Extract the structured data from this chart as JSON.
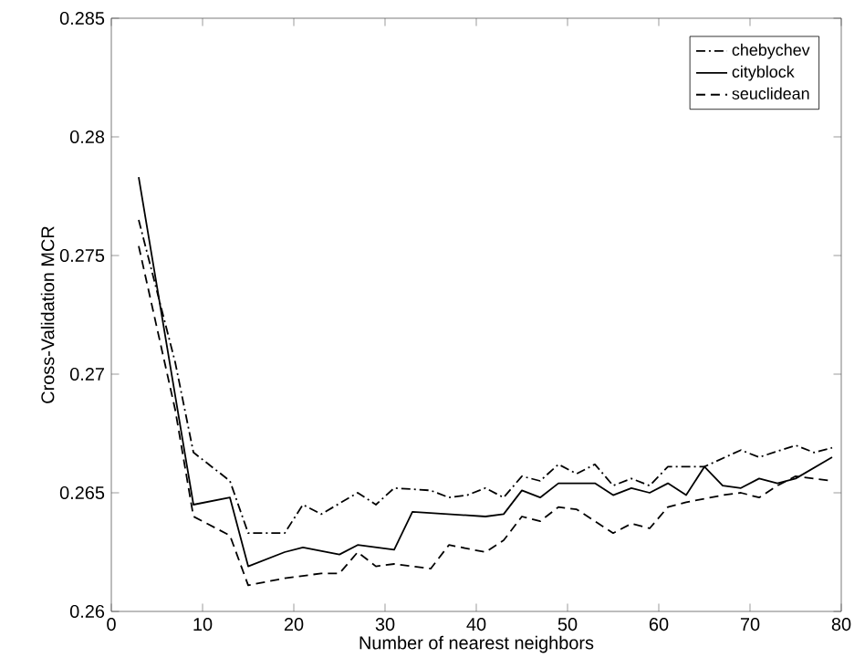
{
  "chart_data": {
    "type": "line",
    "xlabel": "Number of nearest neighbors",
    "ylabel": "Cross-Validation MCR",
    "xlim": [
      0,
      80
    ],
    "xticks": [
      0,
      10,
      20,
      30,
      40,
      50,
      60,
      70,
      80
    ],
    "ylim": [
      0.26,
      0.285
    ],
    "yticks": [
      0.26,
      0.265,
      0.27,
      0.275,
      0.28,
      0.285
    ],
    "grid": false,
    "legend": "top right",
    "marker": "none",
    "series": [
      {
        "name": "chebychev",
        "color": "#000000",
        "line_style": "dashdot",
        "x": [
          3,
          7,
          9,
          13,
          15,
          19,
          21,
          23,
          27,
          29,
          31,
          35,
          37,
          39,
          41,
          43,
          45,
          47,
          49,
          51,
          53,
          55,
          57,
          59,
          61,
          65,
          69,
          71,
          75,
          77,
          79
        ],
        "values": [
          0.2765,
          0.2705,
          0.2667,
          0.2655,
          0.2633,
          0.2633,
          0.2645,
          0.2641,
          0.265,
          0.2645,
          0.2652,
          0.2651,
          0.2648,
          0.2649,
          0.2652,
          0.2648,
          0.2657,
          0.2655,
          0.2662,
          0.2658,
          0.2662,
          0.2653,
          0.2656,
          0.2653,
          0.2661,
          0.2661,
          0.2668,
          0.2665,
          0.267,
          0.2667,
          0.2669
        ]
      },
      {
        "name": "cityblock",
        "color": "#000000",
        "line_style": "solid",
        "x": [
          3,
          9,
          13,
          15,
          19,
          21,
          25,
          27,
          31,
          33,
          37,
          41,
          43,
          45,
          47,
          49,
          53,
          55,
          57,
          59,
          61,
          63,
          65,
          67,
          69,
          71,
          73,
          75,
          79
        ],
        "values": [
          0.2783,
          0.2645,
          0.2648,
          0.2619,
          0.2625,
          0.2627,
          0.2624,
          0.2628,
          0.2626,
          0.2642,
          0.2641,
          0.264,
          0.2641,
          0.2651,
          0.2648,
          0.2654,
          0.2654,
          0.2649,
          0.2652,
          0.265,
          0.2654,
          0.2649,
          0.2661,
          0.2653,
          0.2652,
          0.2656,
          0.2654,
          0.2656,
          0.2665
        ]
      },
      {
        "name": "seuclidean",
        "color": "#000000",
        "line_style": "dashed",
        "x": [
          3,
          7,
          9,
          13,
          15,
          19,
          23,
          25,
          27,
          29,
          31,
          35,
          37,
          41,
          43,
          45,
          47,
          49,
          51,
          53,
          55,
          57,
          59,
          61,
          63,
          67,
          69,
          71,
          73,
          75,
          79
        ],
        "values": [
          0.2754,
          0.2685,
          0.264,
          0.2632,
          0.2611,
          0.2614,
          0.2616,
          0.2616,
          0.2625,
          0.2619,
          0.262,
          0.2618,
          0.2628,
          0.2625,
          0.263,
          0.264,
          0.2638,
          0.2644,
          0.2643,
          0.2638,
          0.2633,
          0.2637,
          0.2635,
          0.2644,
          0.2646,
          0.2649,
          0.265,
          0.2648,
          0.2653,
          0.2657,
          0.2655
        ]
      }
    ]
  }
}
